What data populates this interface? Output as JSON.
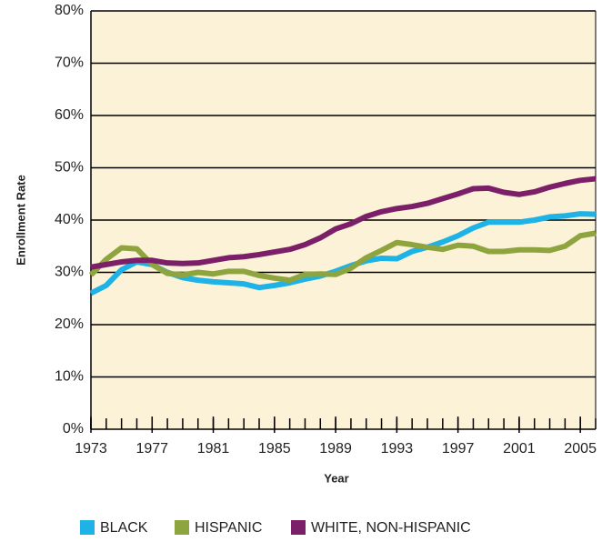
{
  "chart_data": {
    "type": "line",
    "x_label": "Year",
    "y_label": "Enrollment Rate",
    "x": [
      1973,
      1974,
      1975,
      1976,
      1977,
      1978,
      1979,
      1980,
      1981,
      1982,
      1983,
      1984,
      1985,
      1986,
      1987,
      1988,
      1989,
      1990,
      1991,
      1992,
      1993,
      1994,
      1995,
      1996,
      1997,
      1998,
      1999,
      2000,
      2001,
      2002,
      2003,
      2004,
      2005,
      2006
    ],
    "xlim": [
      1973,
      2006
    ],
    "xticks": [
      1973,
      1977,
      1981,
      1985,
      1989,
      1993,
      1997,
      2001,
      2005
    ],
    "ylim": [
      0,
      80
    ],
    "yticks": [
      {
        "value": 0,
        "label": "0%"
      },
      {
        "value": 10,
        "label": "10%"
      },
      {
        "value": 20,
        "label": "20%"
      },
      {
        "value": 30,
        "label": "30%"
      },
      {
        "value": 40,
        "label": "40%"
      },
      {
        "value": 50,
        "label": "50%"
      },
      {
        "value": 60,
        "label": "60%"
      },
      {
        "value": 70,
        "label": "70%"
      },
      {
        "value": 80,
        "label": "80%"
      }
    ],
    "grid": true,
    "legend": "bottom",
    "background": "#fcf2d7",
    "series": [
      {
        "name": "BLACK",
        "color": "#1db3e6",
        "values": [
          26,
          27.5,
          30.5,
          32,
          31.5,
          30,
          29,
          28.5,
          28.2,
          28,
          27.8,
          27.1,
          27.5,
          28,
          28.7,
          29.3,
          30.2,
          31.3,
          32.2,
          32.7,
          32.6,
          34,
          34.8,
          35.8,
          37,
          38.5,
          39.6,
          39.6,
          39.6,
          40,
          40.6,
          40.8,
          41.2,
          41.1
        ]
      },
      {
        "name": "HISPANIC",
        "color": "#8ea53f",
        "values": [
          29.5,
          32.5,
          34.7,
          34.5,
          31.5,
          29.8,
          29.5,
          30,
          29.7,
          30.2,
          30.2,
          29.4,
          28.9,
          28.5,
          29.6,
          29.7,
          29.6,
          30.8,
          32.8,
          34.2,
          35.7,
          35.3,
          34.8,
          34.4,
          35.2,
          35,
          34,
          34,
          34.3,
          34.3,
          34.2,
          35,
          37,
          37.5
        ]
      },
      {
        "name": "WHITE, NON-HISPANIC",
        "color": "#7c1f69",
        "values": [
          31,
          31.5,
          32,
          32.3,
          32.3,
          31.8,
          31.7,
          31.8,
          32.3,
          32.8,
          33,
          33.4,
          33.9,
          34.4,
          35.3,
          36.6,
          38.3,
          39.3,
          40.7,
          41.6,
          42.2,
          42.6,
          43.2,
          44.1,
          45,
          46,
          46.1,
          45.3,
          44.9,
          45.4,
          46.3,
          47,
          47.6,
          47.9
        ]
      }
    ]
  }
}
